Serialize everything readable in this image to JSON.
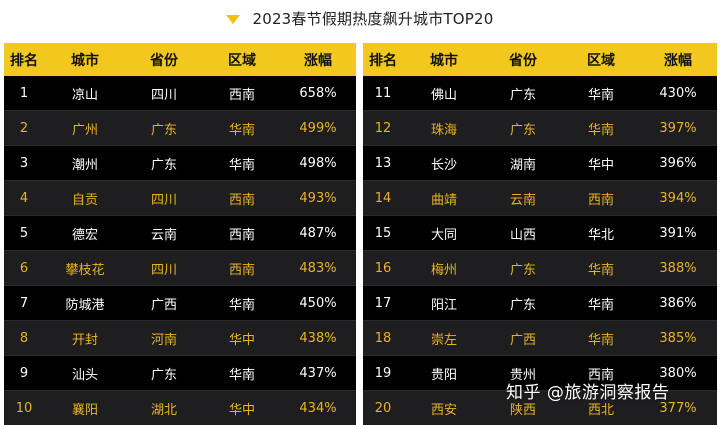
{
  "title": "2023春节假期热度飙升城市TOP20",
  "headers": [
    "排名",
    "城市",
    "省份",
    "区域",
    "涨幅"
  ],
  "left_rows": [
    [
      "1",
      "凉山",
      "四川",
      "西南",
      "658%"
    ],
    [
      "2",
      "广州",
      "广东",
      "华南",
      "499%"
    ],
    [
      "3",
      "潮州",
      "广东",
      "华南",
      "498%"
    ],
    [
      "4",
      "自贡",
      "四川",
      "西南",
      "493%"
    ],
    [
      "5",
      "德宏",
      "云南",
      "西南",
      "487%"
    ],
    [
      "6",
      "攀枝花",
      "四川",
      "西南",
      "483%"
    ],
    [
      "7",
      "防城港",
      "广西",
      "华南",
      "450%"
    ],
    [
      "8",
      "开封",
      "河南",
      "华中",
      "438%"
    ],
    [
      "9",
      "汕头",
      "广东",
      "华南",
      "437%"
    ],
    [
      "10",
      "襄阳",
      "湖北",
      "华中",
      "434%"
    ]
  ],
  "right_rows": [
    [
      "11",
      "佛山",
      "广东",
      "华南",
      "430%"
    ],
    [
      "12",
      "珠海",
      "广东",
      "华南",
      "397%"
    ],
    [
      "13",
      "长沙",
      "湖南",
      "华中",
      "396%"
    ],
    [
      "14",
      "曲靖",
      "云南",
      "西南",
      "394%"
    ],
    [
      "15",
      "大同",
      "山西",
      "华北",
      "391%"
    ],
    [
      "16",
      "梅州",
      "广东",
      "华南",
      "388%"
    ],
    [
      "17",
      "阳江",
      "广东",
      "华南",
      "386%"
    ],
    [
      "18",
      "崇左",
      "广西",
      "华南",
      "385%"
    ],
    [
      "19",
      "贵阳",
      "贵州",
      "西南",
      "380%"
    ],
    [
      "20",
      "西安",
      "陕西",
      "西北",
      "377%"
    ]
  ],
  "watermark": "知乎 @旅游洞察报告",
  "colors": {
    "header_bg": "#f3c81e",
    "accent_text": "#e9b322",
    "row_dark": "#000000",
    "row_alt": "#1e1e20",
    "title_marker": "#f3bf14"
  }
}
